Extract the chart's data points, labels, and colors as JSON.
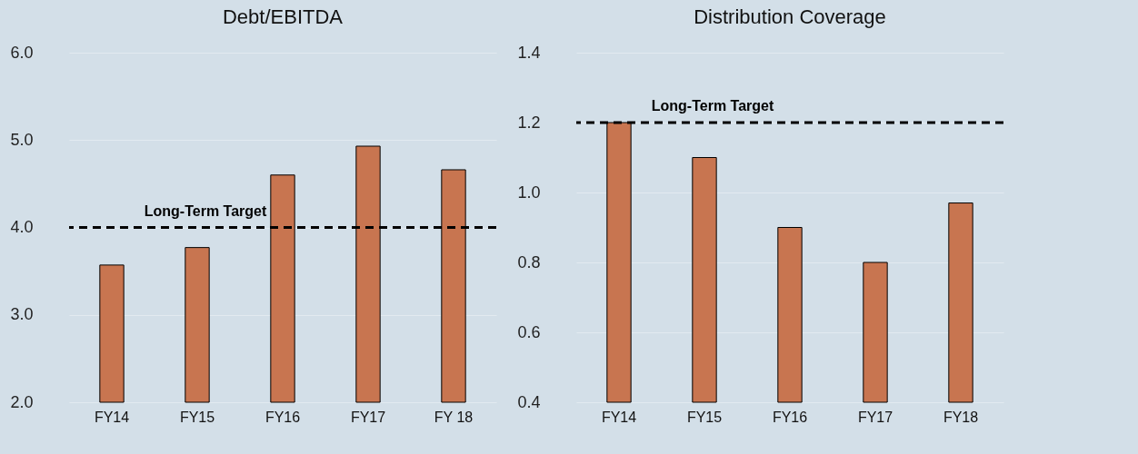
{
  "chart_data": [
    {
      "type": "bar",
      "title": "Debt/EBITDA",
      "categories": [
        "FY14",
        "FY15",
        "FY16",
        "FY17",
        "FY 18"
      ],
      "values": [
        3.57,
        3.77,
        4.6,
        4.93,
        4.66
      ],
      "color": "#c87550",
      "ylim": [
        2,
        6
      ],
      "yticks": [
        {
          "value": 2,
          "label": "2.0"
        },
        {
          "value": 3,
          "label": "3.0"
        },
        {
          "value": 4,
          "label": "4.0"
        },
        {
          "value": 5,
          "label": "5.0"
        },
        {
          "value": 6,
          "label": "6.0"
        }
      ],
      "grid": "y",
      "legend": false,
      "ref_lines": [
        {
          "axis": "y",
          "value": 4,
          "label": "Long-Term Target",
          "line_style": "dashed",
          "color": "#000000"
        }
      ]
    },
    {
      "type": "bar",
      "title": "Distribution Coverage",
      "categories": [
        "FY14",
        "FY15",
        "FY16",
        "FY17",
        "FY18"
      ],
      "values": [
        1.2,
        1.1,
        0.9,
        0.8,
        0.97
      ],
      "color": "#c87550",
      "ylim": [
        0.4,
        1.4
      ],
      "yticks": [
        0.4,
        0.6,
        0.8,
        {
          "value": 1,
          "label": "1.0"
        },
        1.2,
        1.4
      ],
      "grid": "y",
      "legend": false,
      "ref_lines": [
        {
          "axis": "y",
          "value": 1.2,
          "label": "Long-Term Target",
          "line_style": "dashed",
          "color": "#000000"
        }
      ]
    }
  ]
}
